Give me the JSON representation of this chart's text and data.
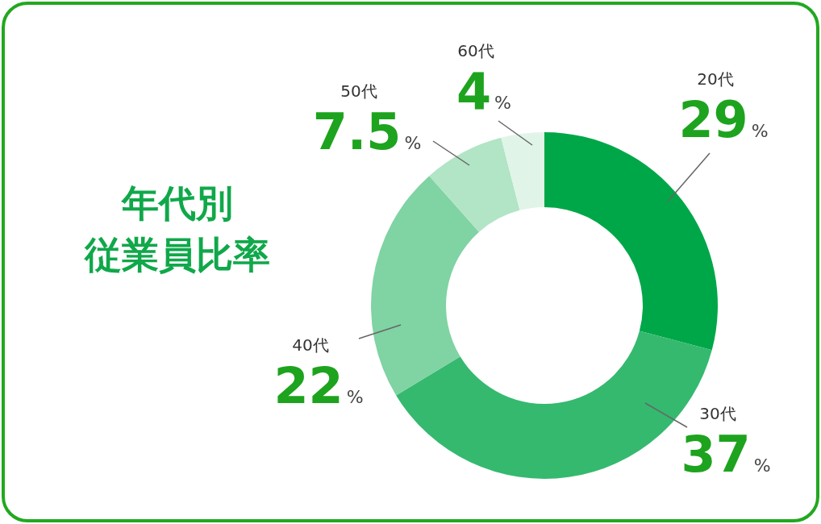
{
  "chart_data": {
    "type": "donut",
    "title": "年代別従業員比率",
    "categories": [
      "20代",
      "30代",
      "40代",
      "50代",
      "60代"
    ],
    "values": [
      29,
      37,
      22,
      7.5,
      4
    ],
    "value_labels": [
      "29%",
      "37%",
      "22%",
      "7.5%",
      "4%"
    ],
    "colors": [
      "#00a748",
      "#35b96f",
      "#80d3a3",
      "#b2e4c6",
      "#e1f4e8"
    ]
  }
}
